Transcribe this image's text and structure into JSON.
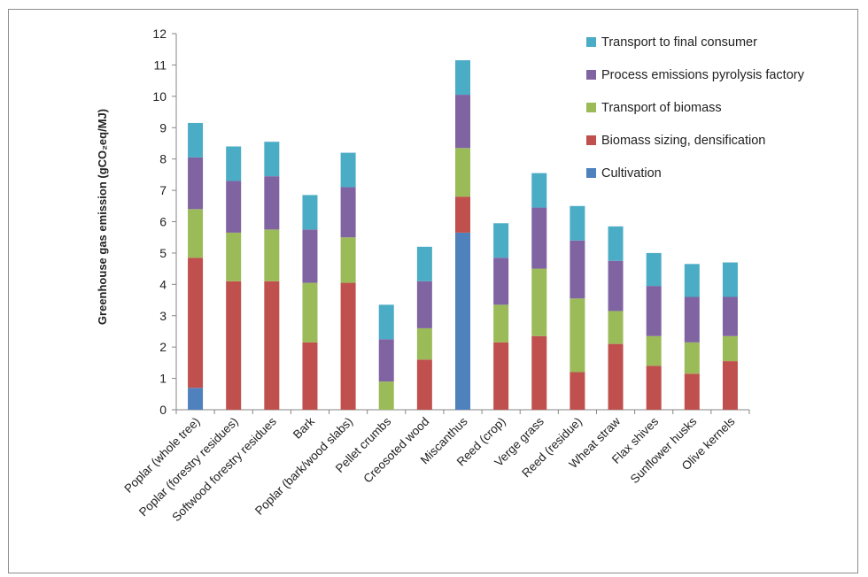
{
  "chart_data": {
    "type": "bar",
    "stacked": true,
    "title": "",
    "xlabel": "",
    "ylabel": "Greenhouse gas emission (gCO₂eq/MJ)",
    "ylim": [
      0,
      12
    ],
    "yticks": [
      0,
      1,
      2,
      3,
      4,
      5,
      6,
      7,
      8,
      9,
      10,
      11,
      12
    ],
    "grid": false,
    "legend_position": "top-right",
    "categories": [
      "Poplar (whole tree)",
      "Poplar (forestry residues)",
      "Softwood forestry residues",
      "Bark",
      "Poplar (bark/wood slabs)",
      "Pellet crumbs",
      "Creosoted wood",
      "Miscanthus",
      "Reed (crop)",
      "Verge grass",
      "Reed (residue)",
      "Wheat straw",
      "Flax shives",
      "Sunflower husks",
      "Olive kernels"
    ],
    "series": [
      {
        "name": "Cultivation",
        "color": "#4f81bd",
        "values": [
          0.7,
          0,
          0,
          0,
          0,
          0,
          0,
          5.65,
          0,
          0,
          0,
          0,
          0,
          0,
          0
        ]
      },
      {
        "name": "Biomass sizing, densification",
        "color": "#c0504d",
        "values": [
          4.15,
          4.1,
          4.1,
          2.15,
          4.05,
          0,
          1.6,
          1.15,
          2.15,
          2.35,
          1.2,
          2.1,
          1.4,
          1.15,
          1.55
        ]
      },
      {
        "name": "Transport of biomass",
        "color": "#9bbb59",
        "values": [
          1.55,
          1.55,
          1.65,
          1.9,
          1.45,
          0.9,
          1.0,
          1.55,
          1.2,
          2.15,
          2.35,
          1.05,
          0.95,
          1.0,
          0.8
        ]
      },
      {
        "name": "Process emissions pyrolysis factory",
        "color": "#8064a2",
        "values": [
          1.65,
          1.65,
          1.7,
          1.7,
          1.6,
          1.35,
          1.5,
          1.7,
          1.5,
          1.95,
          1.85,
          1.6,
          1.6,
          1.45,
          1.25
        ]
      },
      {
        "name": "Transport to final consumer",
        "color": "#4bacc6",
        "values": [
          1.1,
          1.1,
          1.1,
          1.1,
          1.1,
          1.1,
          1.1,
          1.1,
          1.1,
          1.1,
          1.1,
          1.1,
          1.05,
          1.05,
          1.1
        ]
      }
    ]
  }
}
